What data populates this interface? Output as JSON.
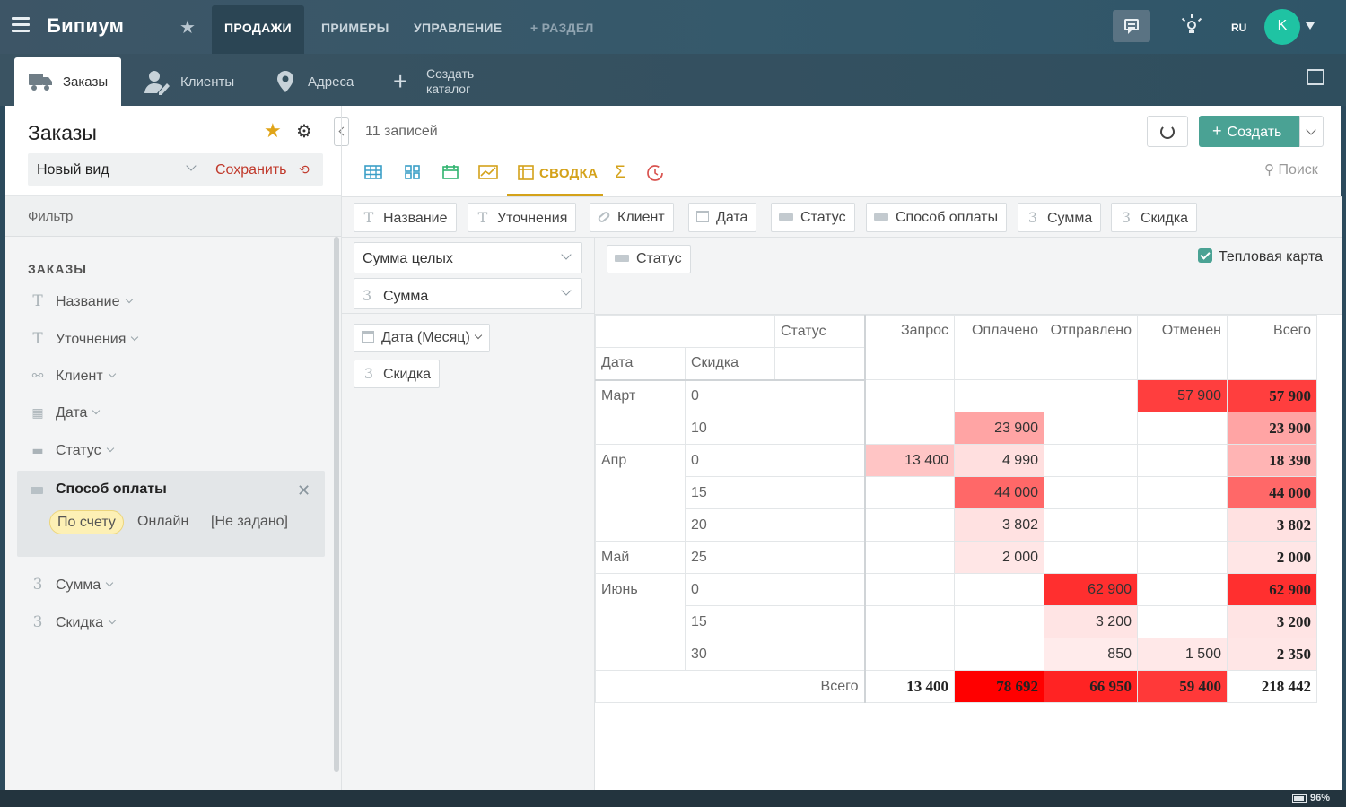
{
  "topbar": {
    "logo": "Бипиум",
    "tabs": [
      {
        "label": "ПРОДАЖИ"
      },
      {
        "label": "ПРИМЕРЫ"
      },
      {
        "label": "УПРАВЛЕНИЕ"
      },
      {
        "label": "+ РАЗДЕЛ"
      }
    ],
    "lang": "RU",
    "avatar_letter": "K"
  },
  "catalogs": {
    "tabs": [
      {
        "label": "Заказы"
      },
      {
        "label": "Клиенты"
      },
      {
        "label": "Адреса"
      },
      {
        "label": "Создать каталог"
      }
    ]
  },
  "sidebar": {
    "title": "Заказы",
    "view_name": "Новый вид",
    "save_label": "Сохранить",
    "filter_label": "Фильтр",
    "section_title": "ЗАКАЗЫ",
    "fields": [
      {
        "label": "Название",
        "icon": "T"
      },
      {
        "label": "Уточнения",
        "icon": "T"
      },
      {
        "label": "Клиент",
        "icon": "link-icon"
      },
      {
        "label": "Дата",
        "icon": "calendar-icon"
      },
      {
        "label": "Статус",
        "icon": "tag-icon"
      }
    ],
    "payment": {
      "title": "Способ оплаты",
      "options": [
        {
          "label": "По счету",
          "selected": true
        },
        {
          "label": "Онлайн",
          "selected": false
        },
        {
          "label": "[Не задано]",
          "selected": false
        }
      ]
    },
    "fields_after": [
      {
        "label": "Сумма",
        "icon": "3"
      },
      {
        "label": "Скидка",
        "icon": "3"
      }
    ]
  },
  "content": {
    "records_count": "11 записей",
    "create_label": "Создать",
    "active_view": "СВОДКА",
    "sigma": "Σ",
    "search_label": "Поиск",
    "field_chips": [
      {
        "label": "Название",
        "icon": "T"
      },
      {
        "label": "Уточнения",
        "icon": "T"
      },
      {
        "label": "Клиент",
        "icon": "link-icon"
      },
      {
        "label": "Дата",
        "icon": "calendar-icon"
      },
      {
        "label": "Статус",
        "icon": "tag-icon"
      },
      {
        "label": "Способ оплаты",
        "icon": "tag-icon"
      },
      {
        "label": "Сумма",
        "icon": "3"
      },
      {
        "label": "Скидка",
        "icon": "3"
      }
    ],
    "aggregation": "Сумма целых",
    "value_field": "Сумма",
    "row_fields": [
      "Дата (Месяц)",
      "Скидка"
    ],
    "column_field": "Статус",
    "heatmap_label": "Тепловая карта"
  },
  "pivot": {
    "col_dim_label": "Статус",
    "row_dim_labels": [
      "Дата",
      "Скидка"
    ],
    "columns": [
      "Запрос",
      "Оплачено",
      "Отправлено",
      "Отменен",
      "Всего"
    ],
    "rows": [
      {
        "month": "Март",
        "discount": "0",
        "cells": [
          "",
          "",
          "",
          "57 900",
          "57 900"
        ],
        "heat": [
          0,
          0,
          0,
          0.74,
          0.74
        ]
      },
      {
        "month": "",
        "discount": "10",
        "cells": [
          "",
          "23 900",
          "",
          "",
          "23 900"
        ],
        "heat": [
          0,
          0.31,
          0,
          0,
          0.31
        ]
      },
      {
        "month": "Апр",
        "discount": "0",
        "cells": [
          "13 400",
          "4 990",
          "",
          "",
          "18 390"
        ],
        "heat": [
          0.17,
          0.06,
          0,
          0,
          0.24
        ]
      },
      {
        "month": "",
        "discount": "15",
        "cells": [
          "",
          "44 000",
          "",
          "",
          "44 000"
        ],
        "heat": [
          0,
          0.56,
          0,
          0,
          0.56
        ]
      },
      {
        "month": "",
        "discount": "20",
        "cells": [
          "",
          "3 802",
          "",
          "",
          "3 802"
        ],
        "heat": [
          0,
          0.05,
          0,
          0,
          0.05
        ]
      },
      {
        "month": "Май",
        "discount": "25",
        "cells": [
          "",
          "2 000",
          "",
          "",
          "2 000"
        ],
        "heat": [
          0,
          0.03,
          0,
          0,
          0.03
        ]
      },
      {
        "month": "Июнь",
        "discount": "0",
        "cells": [
          "",
          "",
          "62 900",
          "",
          "62 900"
        ],
        "heat": [
          0,
          0,
          0.8,
          0,
          0.8
        ]
      },
      {
        "month": "",
        "discount": "15",
        "cells": [
          "",
          "",
          "3 200",
          "",
          "3 200"
        ],
        "heat": [
          0,
          0,
          0.04,
          0,
          0.04
        ]
      },
      {
        "month": "",
        "discount": "30",
        "cells": [
          "",
          "",
          "850",
          "1 500",
          "2 350"
        ],
        "heat": [
          0,
          0,
          0.01,
          0.02,
          0.03
        ]
      }
    ],
    "total_label": "Всего",
    "totals": [
      "13 400",
      "78 692",
      "66 950",
      "59 400",
      "218 442"
    ],
    "totals_heat": [
      0,
      1,
      0.85,
      0.76,
      0
    ]
  },
  "status": {
    "battery": "96%"
  },
  "colors": {
    "accent": "#4aa294",
    "active_view": "#d4a21a",
    "heat": "#ff0000"
  }
}
